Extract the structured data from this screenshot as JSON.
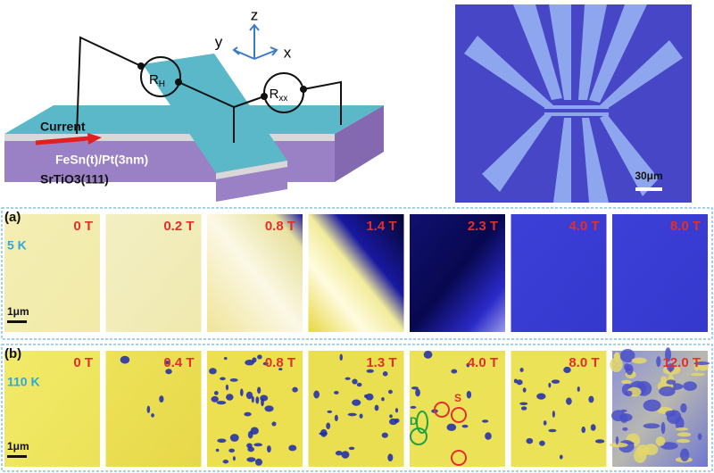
{
  "schematic": {
    "axes": {
      "z": "z",
      "y": "y",
      "x": "x"
    },
    "rh": {
      "main": "R",
      "sub": "H"
    },
    "rxx": {
      "main": "R",
      "sub": "xx"
    },
    "current": "Current",
    "film": "FeSn(t)/Pt(3nm)",
    "substrate": "SrTiO3(111)"
  },
  "micrograph": {
    "scale_bar": "30μm"
  },
  "panels": [
    {
      "label": "(a)",
      "temperature": "5 K",
      "scale_bar": "1μm",
      "fields": [
        "0 T",
        "0.2 T",
        "0.8 T",
        "1.4 T",
        "2.3 T",
        "4.0 T",
        "8.0 T"
      ]
    },
    {
      "label": "(b)",
      "temperature": "110 K",
      "scale_bar": "1μm",
      "fields": [
        "0 T",
        "0.4 T",
        "0.8 T",
        "1.3 T",
        "4.0 T",
        "8.0 T",
        "12.0 T"
      ],
      "annotations": [
        "D",
        "S"
      ]
    }
  ]
}
